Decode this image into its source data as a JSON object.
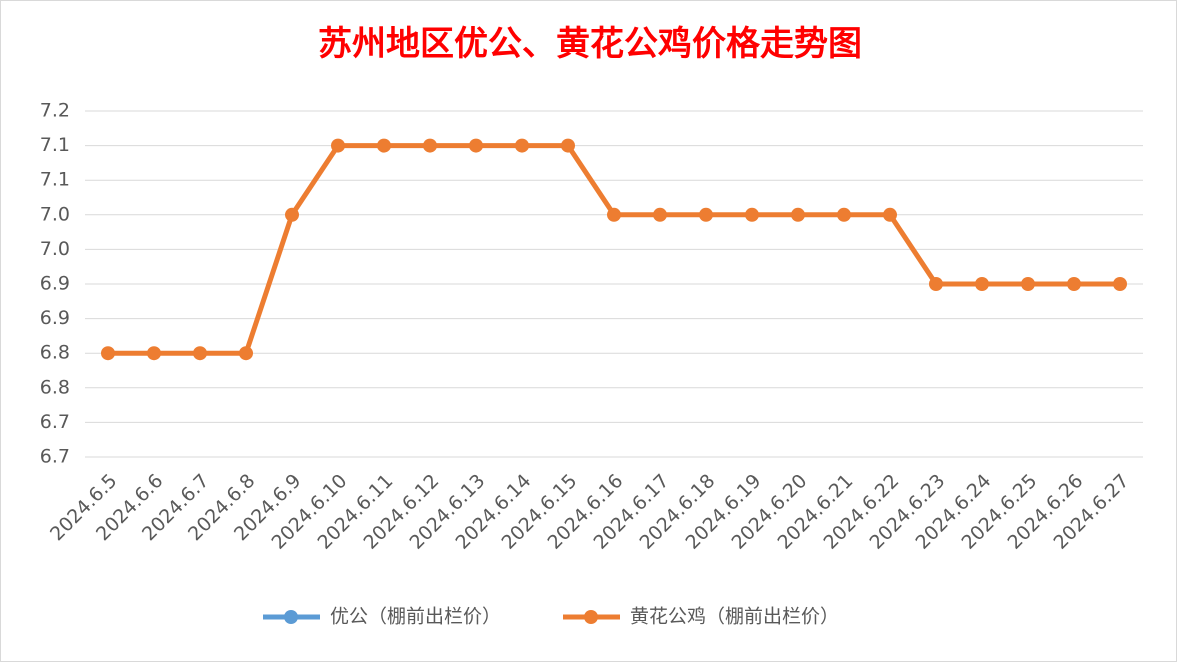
{
  "chart_data": {
    "type": "line",
    "title": "苏州地区优公、黄花公鸡价格走势图",
    "categories": [
      "2024.6.5",
      "2024.6.6",
      "2024.6.7",
      "2024.6.8",
      "2024.6.9",
      "2024.6.10",
      "2024.6.11",
      "2024.6.12",
      "2024.6.13",
      "2024.6.14",
      "2024.6.15",
      "2024.6.16",
      "2024.6.17",
      "2024.6.18",
      "2024.6.19",
      "2024.6.20",
      "2024.6.21",
      "2024.6.22",
      "2024.6.23",
      "2024.6.24",
      "2024.6.25",
      "2024.6.26",
      "2024.6.27"
    ],
    "series": [
      {
        "name": "优公（棚前出栏价）",
        "color": "#5b9bd5",
        "values": [
          null,
          null,
          null,
          null,
          null,
          null,
          null,
          null,
          null,
          null,
          null,
          null,
          null,
          null,
          null,
          null,
          null,
          null,
          null,
          null,
          null,
          null,
          null
        ]
      },
      {
        "name": "黄花公鸡（棚前出栏价）",
        "color": "#ed7d31",
        "values": [
          6.8,
          6.8,
          6.8,
          6.8,
          7.0,
          7.1,
          7.1,
          7.1,
          7.1,
          7.1,
          7.1,
          7.0,
          7.0,
          7.0,
          7.0,
          7.0,
          7.0,
          7.0,
          6.9,
          6.9,
          6.9,
          6.9,
          6.9
        ]
      }
    ],
    "ylim": [
      6.65,
      7.15
    ],
    "yticks": [
      {
        "value": 6.65,
        "label": "6.7"
      },
      {
        "value": 6.7,
        "label": "6.7"
      },
      {
        "value": 6.75,
        "label": "6.8"
      },
      {
        "value": 6.8,
        "label": "6.8"
      },
      {
        "value": 6.85,
        "label": "6.9"
      },
      {
        "value": 6.9,
        "label": "6.9"
      },
      {
        "value": 6.95,
        "label": "7.0"
      },
      {
        "value": 7.0,
        "label": "7.0"
      },
      {
        "value": 7.05,
        "label": "7.1"
      },
      {
        "value": 7.1,
        "label": "7.1"
      },
      {
        "value": 7.15,
        "label": "7.2"
      }
    ],
    "grid": true,
    "legend": "bottom"
  }
}
